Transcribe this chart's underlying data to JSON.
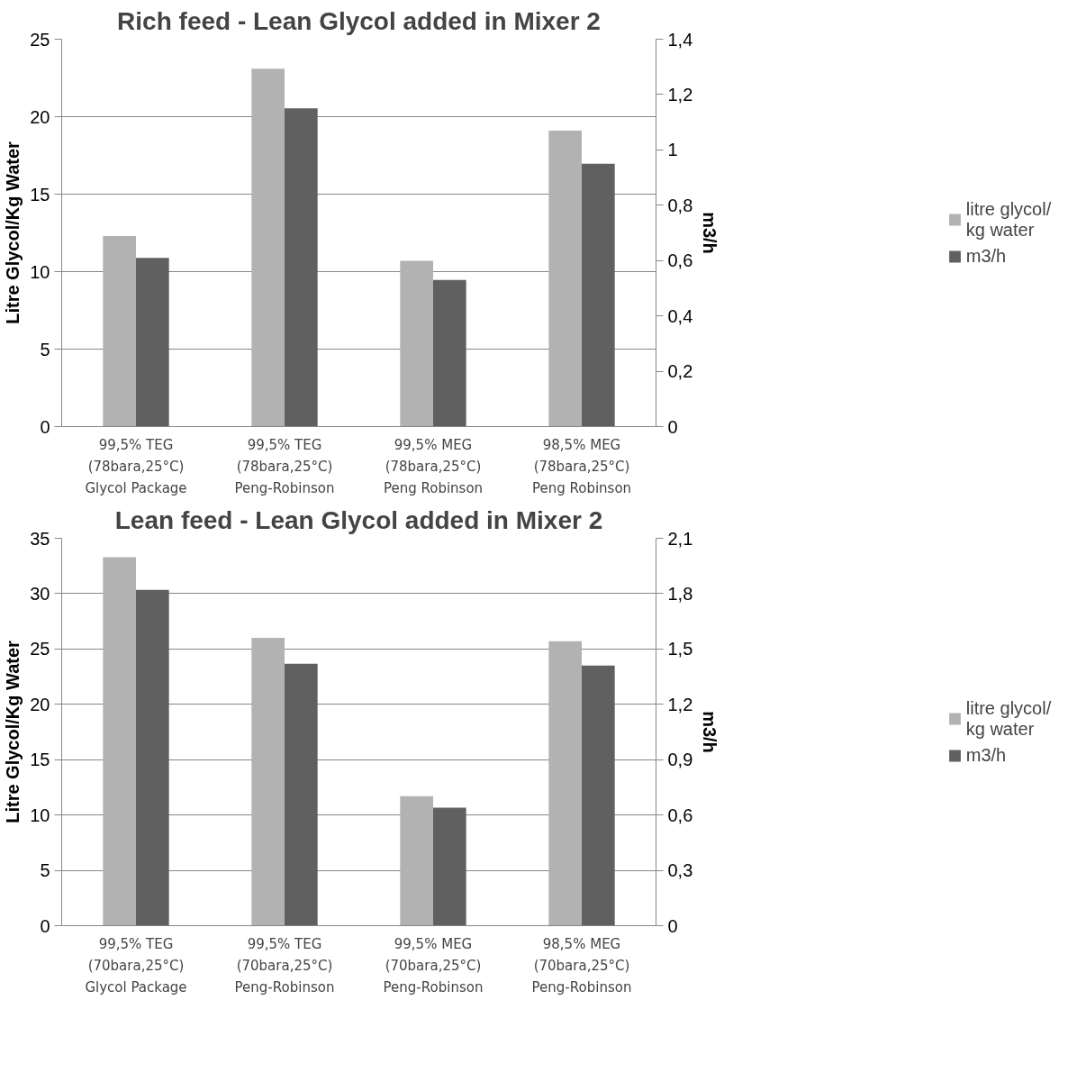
{
  "chart_data": [
    {
      "type": "bar",
      "title": "Rich feed - Lean Glycol added in Mixer 2",
      "ylabel": "Litre Glycol/Kg Water",
      "y2label": "m3/h",
      "categories": [
        "99,5% TEG\n(78bara,25°C)\nGlycol Package",
        "99,5% TEG\n(78bara,25°C)\nPeng-Robinson",
        "99,5% MEG\n(78bara,25°C)\nPeng Robinson",
        "98,5% MEG\n(78bara,25°C)\nPeng Robinson"
      ],
      "series": [
        {
          "name": "litre glycol/ kg water",
          "color": "#b2b2b2",
          "values": [
            12.3,
            23.1,
            10.7,
            19.1
          ]
        },
        {
          "name": "m3/h",
          "color": "#606060",
          "values": [
            0.61,
            1.15,
            0.53,
            0.95
          ],
          "axis": "y2"
        }
      ],
      "ylim": [
        0,
        25
      ],
      "yticks": [
        0,
        5,
        10,
        15,
        20,
        25
      ],
      "y2lim": [
        0,
        1.4
      ],
      "y2ticks": [
        0,
        {
          "value": 0.2,
          "label": "0,2"
        },
        {
          "value": 0.4,
          "label": "0,4"
        },
        {
          "value": 0.6,
          "label": "0,6"
        },
        {
          "value": 0.8,
          "label": "0,8"
        },
        1,
        {
          "value": 1.2,
          "label": "1,2"
        },
        {
          "value": 1.4,
          "label": "1,4"
        }
      ],
      "grid": "y",
      "legend": "right"
    },
    {
      "type": "bar",
      "title": "Lean feed - Lean Glycol added in Mixer 2",
      "ylabel": "Litre Glycol/Kg Water",
      "y2label": "m3/h",
      "categories": [
        "99,5% TEG\n(70bara,25°C)\nGlycol Package",
        "99,5% TEG\n(70bara,25°C)\nPeng-Robinson",
        "99,5% MEG\n(70bara,25°C)\nPeng-Robinson",
        "98,5% MEG\n(70bara,25°C)\nPeng-Robinson"
      ],
      "series": [
        {
          "name": "litre glycol/ kg water",
          "color": "#b2b2b2",
          "values": [
            33.3,
            26.0,
            11.7,
            25.7
          ]
        },
        {
          "name": "m3/h",
          "color": "#606060",
          "values": [
            1.82,
            1.42,
            0.64,
            1.41
          ],
          "axis": "y2"
        }
      ],
      "ylim": [
        0,
        35
      ],
      "yticks": [
        0,
        5,
        10,
        15,
        20,
        25,
        30,
        35
      ],
      "y2lim": [
        0,
        2.1
      ],
      "y2ticks": [
        0,
        {
          "value": 0.3,
          "label": "0,3"
        },
        {
          "value": 0.6,
          "label": "0,6"
        },
        {
          "value": 0.9,
          "label": "0,9"
        },
        {
          "value": 1.2,
          "label": "1,2"
        },
        {
          "value": 1.5,
          "label": "1,5"
        },
        {
          "value": 1.8,
          "label": "1,8"
        },
        {
          "value": 2.1,
          "label": "2,1"
        }
      ],
      "grid": "y",
      "legend": "right"
    }
  ]
}
